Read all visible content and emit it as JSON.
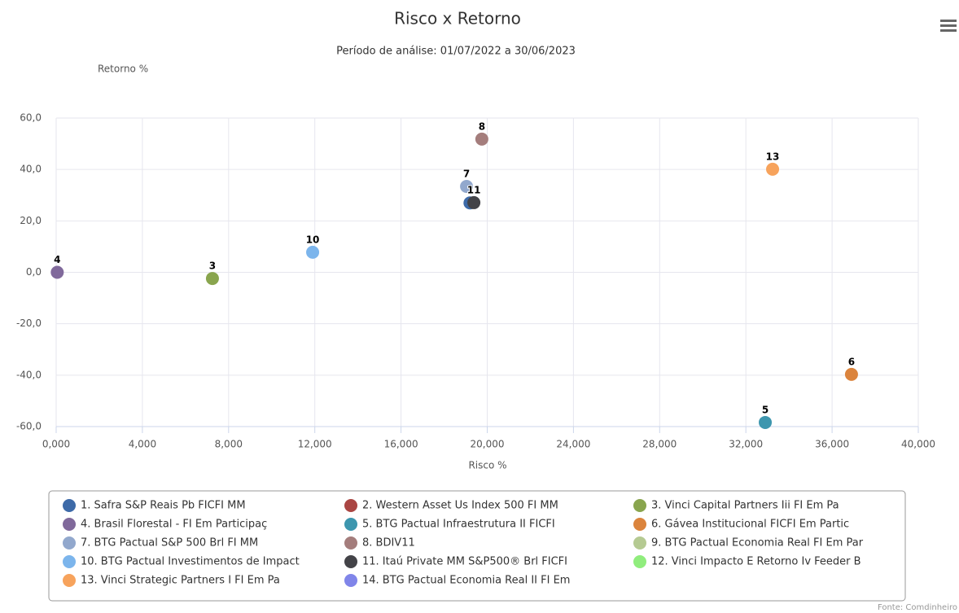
{
  "chart_data": {
    "type": "scatter",
    "title": "Risco x Retorno",
    "subtitle": "Período de análise: 01/07/2022 a 30/06/2023",
    "y_label": "Retorno %",
    "x_label": "Risco %",
    "source": "Fonte: Comdinheiro",
    "xlim": [
      0,
      40
    ],
    "ylim": [
      -60,
      60
    ],
    "grid": true,
    "xticks": [
      {
        "value": 0,
        "label": "0,000"
      },
      {
        "value": 4,
        "label": "4,000"
      },
      {
        "value": 8,
        "label": "8,000"
      },
      {
        "value": 12,
        "label": "12,000"
      },
      {
        "value": 16,
        "label": "16,000"
      },
      {
        "value": 20,
        "label": "20,000"
      },
      {
        "value": 24,
        "label": "24,000"
      },
      {
        "value": 28,
        "label": "28,000"
      },
      {
        "value": 32,
        "label": "32,000"
      },
      {
        "value": 36,
        "label": "36,000"
      },
      {
        "value": 40,
        "label": "40,000"
      }
    ],
    "yticks": [
      {
        "value": 60,
        "label": "60,0"
      },
      {
        "value": 40,
        "label": "40,0"
      },
      {
        "value": 20,
        "label": "20,0"
      },
      {
        "value": 0,
        "label": "0,0"
      },
      {
        "value": -20,
        "label": "-20,0"
      },
      {
        "value": -40,
        "label": "-40,0"
      },
      {
        "value": -60,
        "label": "-60,0"
      }
    ],
    "series": [
      {
        "name": "1. Safra S&P Reais Pb FICFI MM",
        "label": "1",
        "color": "#3d6aa8",
        "x": 19.2,
        "y": 27
      },
      {
        "name": "2. Western Asset Us Index 500 FI MM",
        "color": "#aa4643",
        "x": null,
        "y": null
      },
      {
        "name": "3. Vinci Capital Partners Iii FI Em Pa",
        "label": "3",
        "color": "#89a54e",
        "x": 7.25,
        "y": -2.4
      },
      {
        "name": "4. Brasil Florestal - FI Em Participaç",
        "label": "4",
        "color": "#80699b",
        "x": 0.05,
        "y": 0
      },
      {
        "name": "5. BTG Pactual Infraestrutura II FICFI",
        "label": "5",
        "color": "#3d96ae",
        "x": 32.9,
        "y": -58.4
      },
      {
        "name": "6. Gávea Institucional FICFI Em Partic",
        "label": "6",
        "color": "#db843d",
        "x": 36.9,
        "y": -39.7
      },
      {
        "name": "7. BTG Pactual S&P 500 Brl FI MM",
        "label": "7",
        "color": "#92a8cd",
        "x": 19.04,
        "y": 33.4
      },
      {
        "name": "8. BDIV11",
        "label": "8",
        "color": "#a47d7c",
        "x": 19.75,
        "y": 51.8
      },
      {
        "name": "9. BTG Pactual Economia Real FI Em Par",
        "color": "#b5ca92",
        "x": null,
        "y": null
      },
      {
        "name": "10. BTG Pactual Investimentos de Impact",
        "label": "10",
        "color": "#7cb5ec",
        "x": 11.9,
        "y": 7.8
      },
      {
        "name": "11. Itaú Private MM S&P500® Brl FICFI",
        "label": "11",
        "color": "#434348",
        "x": 19.38,
        "y": 27.1
      },
      {
        "name": "12. Vinci Impacto E Retorno Iv Feeder B",
        "color": "#90ed7d",
        "x": null,
        "y": null
      },
      {
        "name": "13. Vinci Strategic Partners I FI Em Pa",
        "label": "13",
        "color": "#f7a35c",
        "x": 33.24,
        "y": 40.1
      },
      {
        "name": "14. BTG Pactual Economia Real II FI Em",
        "color": "#8085e9",
        "x": null,
        "y": null
      }
    ]
  }
}
